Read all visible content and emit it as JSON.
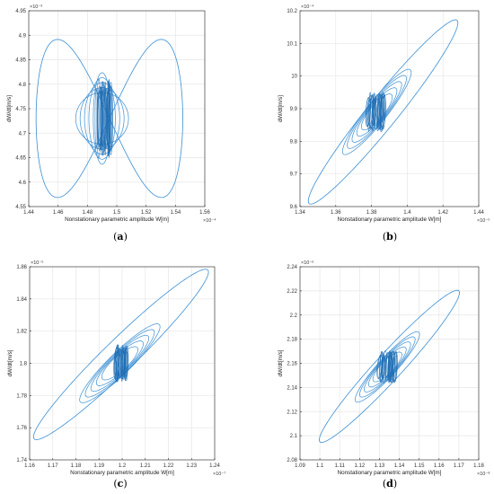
{
  "colors": {
    "trace": "#3b8fd4",
    "dense": "#1f6fb5",
    "grid": "#e6e6e6",
    "axis": "#262626"
  },
  "chart_data": [
    {
      "type": "line",
      "panel": "a",
      "xlabel": "Nonstationary parametric amplitude W[m]",
      "ylabel": "dW/dt[m/s]",
      "x_exponent": "×10⁻⁴",
      "y_exponent": "×10⁻³",
      "xlim": [
        1.44,
        1.56
      ],
      "ylim": [
        4.55,
        4.95
      ],
      "grid": true,
      "x_ticks": [
        "1.44",
        "1.46",
        "1.48",
        "1.5",
        "1.52",
        "1.54",
        "1.56"
      ],
      "y_ticks": [
        "4.55",
        "4.6",
        "4.65",
        "4.7",
        "4.75",
        "4.8",
        "4.85",
        "4.9",
        "4.95"
      ],
      "caption_open": "(",
      "caption_letter": "a",
      "caption_close": ")",
      "trajectory": {
        "shape": "figure-eight",
        "center_x": 1.49,
        "center_y": 4.73,
        "x_min": 1.445,
        "x_max": 1.545,
        "y_min": 4.565,
        "y_max": 4.905,
        "dense_band_x": [
          1.486,
          1.496
        ]
      }
    },
    {
      "type": "line",
      "panel": "b",
      "xlabel": "Nonstationary parametric amplitude W[m]",
      "ylabel": "dW/dt[m/s]",
      "x_exponent": "×10⁻⁵",
      "y_exponent": "×10⁻⁴",
      "xlim": [
        1.34,
        1.44
      ],
      "ylim": [
        9.6,
        10.2
      ],
      "grid": true,
      "x_ticks": [
        "1.34",
        "1.36",
        "1.38",
        "1.4",
        "1.42",
        "1.44"
      ],
      "y_ticks": [
        "9.6",
        "9.7",
        "9.8",
        "9.9",
        "10",
        "10.1",
        "10.2"
      ],
      "caption_open": "(",
      "caption_letter": "b",
      "caption_close": ")",
      "trajectory": {
        "shape": "tilted-ellipse",
        "center_x": 1.383,
        "center_y": 9.89,
        "x_min": 1.345,
        "x_max": 1.428,
        "y_min": 9.61,
        "y_max": 10.17,
        "dense_band_x": [
          1.378,
          1.388
        ]
      }
    },
    {
      "type": "line",
      "panel": "c",
      "xlabel": "Nonstationary parametric amplitude W[m]",
      "ylabel": "dW/dt[m/s]",
      "x_exponent": "×10⁻⁷",
      "y_exponent": "×10⁻⁵",
      "xlim": [
        1.16,
        1.24
      ],
      "ylim": [
        1.74,
        1.86
      ],
      "grid": true,
      "x_ticks": [
        "1.16",
        "1.17",
        "1.18",
        "1.19",
        "1.2",
        "1.21",
        "1.22",
        "1.23",
        "1.24"
      ],
      "y_ticks": [
        "1.74",
        "1.76",
        "1.78",
        "1.8",
        "1.82",
        "1.84",
        "1.86"
      ],
      "caption_open": "(",
      "caption_letter": "c",
      "caption_close": ")",
      "trajectory": {
        "shape": "tilted-ellipse",
        "center_x": 1.199,
        "center_y": 1.8,
        "x_min": 1.162,
        "x_max": 1.237,
        "y_min": 1.753,
        "y_max": 1.858,
        "dense_band_x": [
          1.196,
          1.202
        ]
      }
    },
    {
      "type": "line",
      "panel": "d",
      "xlabel": "Nonstationary parametric amplitude W[m]",
      "ylabel": "dW/dt[m/s]",
      "x_exponent": "×10⁻⁸",
      "y_exponent": "×10⁻⁶",
      "xlim": [
        1.09,
        1.18
      ],
      "ylim": [
        2.08,
        2.24
      ],
      "grid": true,
      "x_ticks": [
        "1.09",
        "1.1",
        "1.11",
        "1.12",
        "1.13",
        "1.14",
        "1.15",
        "1.16",
        "1.17",
        "1.18"
      ],
      "y_ticks": [
        "2.08",
        "2.1",
        "2.12",
        "2.14",
        "2.16",
        "2.18",
        "2.2",
        "2.22",
        "2.24"
      ],
      "caption_open": "(",
      "caption_letter": "d",
      "caption_close": ")",
      "trajectory": {
        "shape": "tilted-ellipse",
        "center_x": 1.134,
        "center_y": 2.157,
        "x_min": 1.1,
        "x_max": 1.17,
        "y_min": 2.095,
        "y_max": 2.22,
        "dense_band_x": [
          1.13,
          1.138
        ]
      }
    }
  ]
}
